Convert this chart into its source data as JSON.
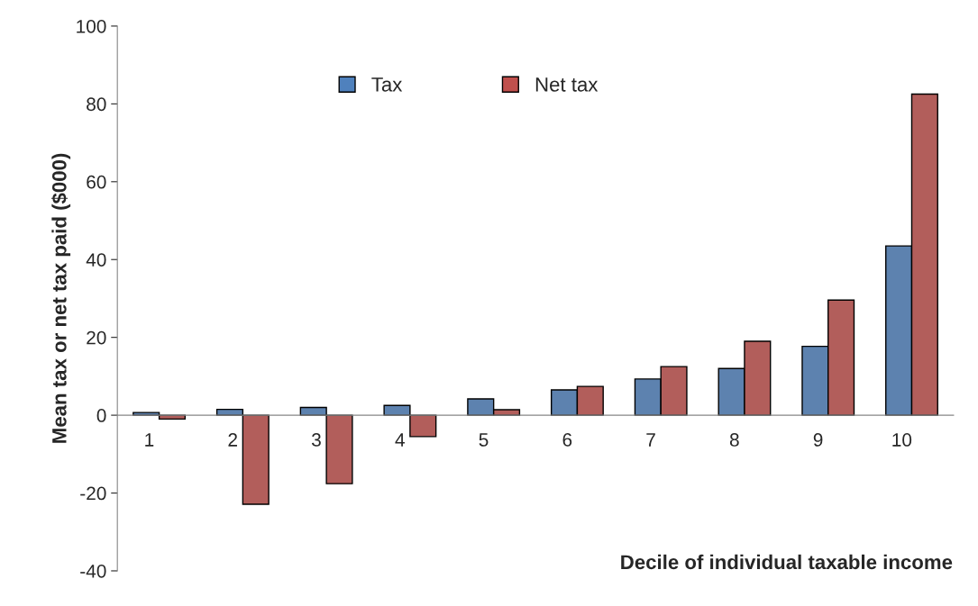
{
  "chart_data": {
    "type": "bar",
    "xlabel": "Decile of individual taxable income",
    "ylabel": "Mean tax or net tax paid ($000)",
    "categories": [
      "1",
      "2",
      "3",
      "4",
      "5",
      "6",
      "7",
      "8",
      "9",
      "10"
    ],
    "series": [
      {
        "name": "Tax",
        "color": "#4f81bd",
        "values": [
          0.7,
          1.5,
          2,
          2.5,
          4.2,
          6.5,
          9.3,
          12,
          17.7,
          43.5
        ]
      },
      {
        "name": "Net tax",
        "color": "#c0504d",
        "values": [
          -1,
          -22.9,
          -17.6,
          -5.5,
          1.4,
          7.4,
          12.5,
          19,
          29.6,
          82.5
        ]
      }
    ],
    "ylim": [
      -40,
      100
    ],
    "yticks": [
      -40,
      -20,
      0,
      20,
      40,
      60,
      80,
      100
    ],
    "grid": false,
    "legend": "top"
  }
}
